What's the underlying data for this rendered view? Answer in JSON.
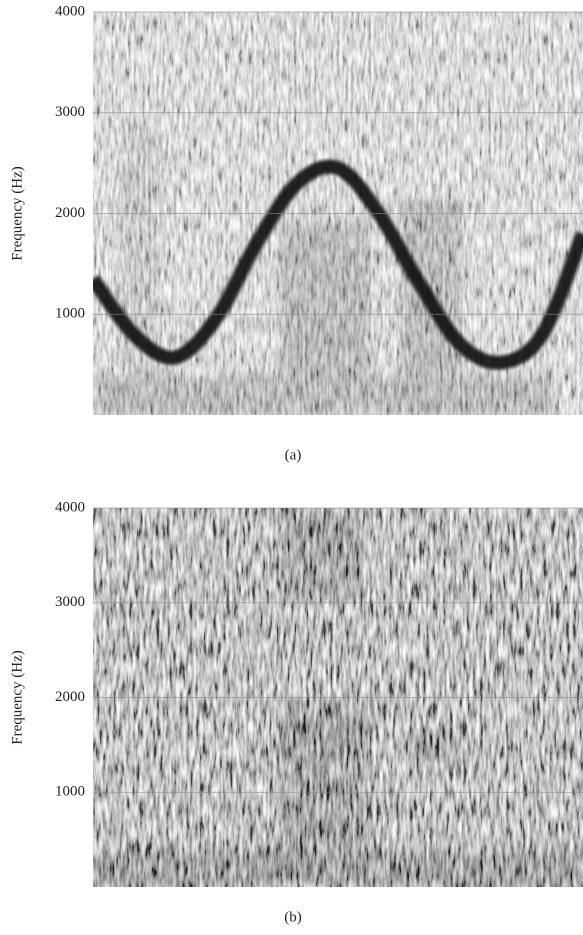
{
  "chart_data": [
    {
      "type": "spectrogram",
      "ylabel": "Frequency (Hz)",
      "caption": "(a)",
      "ylim": [
        0,
        4000
      ],
      "yticks": [
        1000,
        2000,
        3000,
        4000
      ],
      "grid": true,
      "curve": {
        "color": "#111111",
        "values": [
          1350,
          800,
          570,
          950,
          1700,
          2300,
          2450,
          2000,
          1300,
          700,
          520,
          800,
          1800
        ]
      }
    },
    {
      "type": "spectrogram",
      "ylabel": "Frequency (Hz)",
      "caption": "(b)",
      "ylim": [
        0,
        4000
      ],
      "yticks": [
        1000,
        2000,
        3000,
        4000
      ],
      "grid": true
    }
  ]
}
